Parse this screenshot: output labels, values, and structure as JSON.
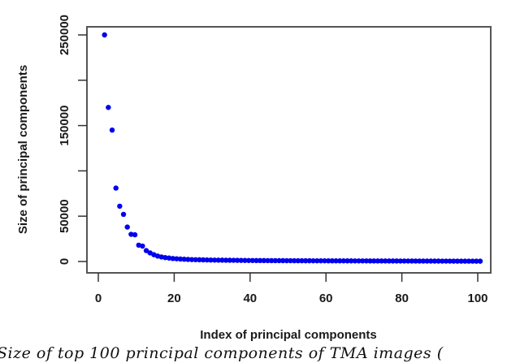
{
  "chart_data": {
    "type": "scatter",
    "title": "",
    "xlabel": "Index of principal components",
    "ylabel": "Size of principal components",
    "xlim": [
      0,
      100
    ],
    "ylim": [
      0,
      250000
    ],
    "x_ticks": [
      0,
      20,
      40,
      60,
      80,
      100
    ],
    "y_ticks": [
      0,
      50000,
      100000,
      150000,
      200000,
      250000
    ],
    "y_tick_labels": [
      "0",
      "50000",
      "",
      "150000",
      "",
      "250000"
    ],
    "grid": false,
    "legend": null,
    "marker_color": "#0000ee",
    "x": [
      1,
      2,
      3,
      4,
      5,
      6,
      7,
      8,
      9,
      10,
      11,
      12,
      13,
      14,
      15,
      16,
      17,
      18,
      19,
      20,
      21,
      22,
      23,
      24,
      25,
      26,
      27,
      28,
      29,
      30,
      31,
      32,
      33,
      34,
      35,
      36,
      37,
      38,
      39,
      40,
      41,
      42,
      43,
      44,
      45,
      46,
      47,
      48,
      49,
      50,
      51,
      52,
      53,
      54,
      55,
      56,
      57,
      58,
      59,
      60,
      61,
      62,
      63,
      64,
      65,
      66,
      67,
      68,
      69,
      70,
      71,
      72,
      73,
      74,
      75,
      76,
      77,
      78,
      79,
      80,
      81,
      82,
      83,
      84,
      85,
      86,
      87,
      88,
      89,
      90,
      91,
      92,
      93,
      94,
      95,
      96,
      97,
      98,
      99,
      100
    ],
    "values": [
      250000,
      170000,
      145000,
      81000,
      61000,
      52000,
      38000,
      30000,
      29500,
      18000,
      17000,
      12000,
      9500,
      7500,
      6000,
      5000,
      4300,
      3800,
      3300,
      3000,
      2700,
      2500,
      2300,
      2100,
      2000,
      1900,
      1800,
      1700,
      1600,
      1550,
      1500,
      1450,
      1400,
      1350,
      1300,
      1250,
      1200,
      1150,
      1100,
      1080,
      1050,
      1020,
      1000,
      980,
      960,
      940,
      920,
      900,
      880,
      860,
      840,
      820,
      800,
      790,
      780,
      770,
      760,
      750,
      740,
      730,
      720,
      710,
      700,
      690,
      680,
      670,
      660,
      650,
      640,
      630,
      620,
      610,
      600,
      590,
      580,
      570,
      560,
      550,
      540,
      530,
      520,
      510,
      500,
      490,
      480,
      470,
      460,
      450,
      440,
      430,
      420,
      410,
      400,
      390,
      380,
      370,
      360,
      350,
      340,
      330
    ]
  },
  "caption": "Size of top 100 principal components of TMA images ("
}
